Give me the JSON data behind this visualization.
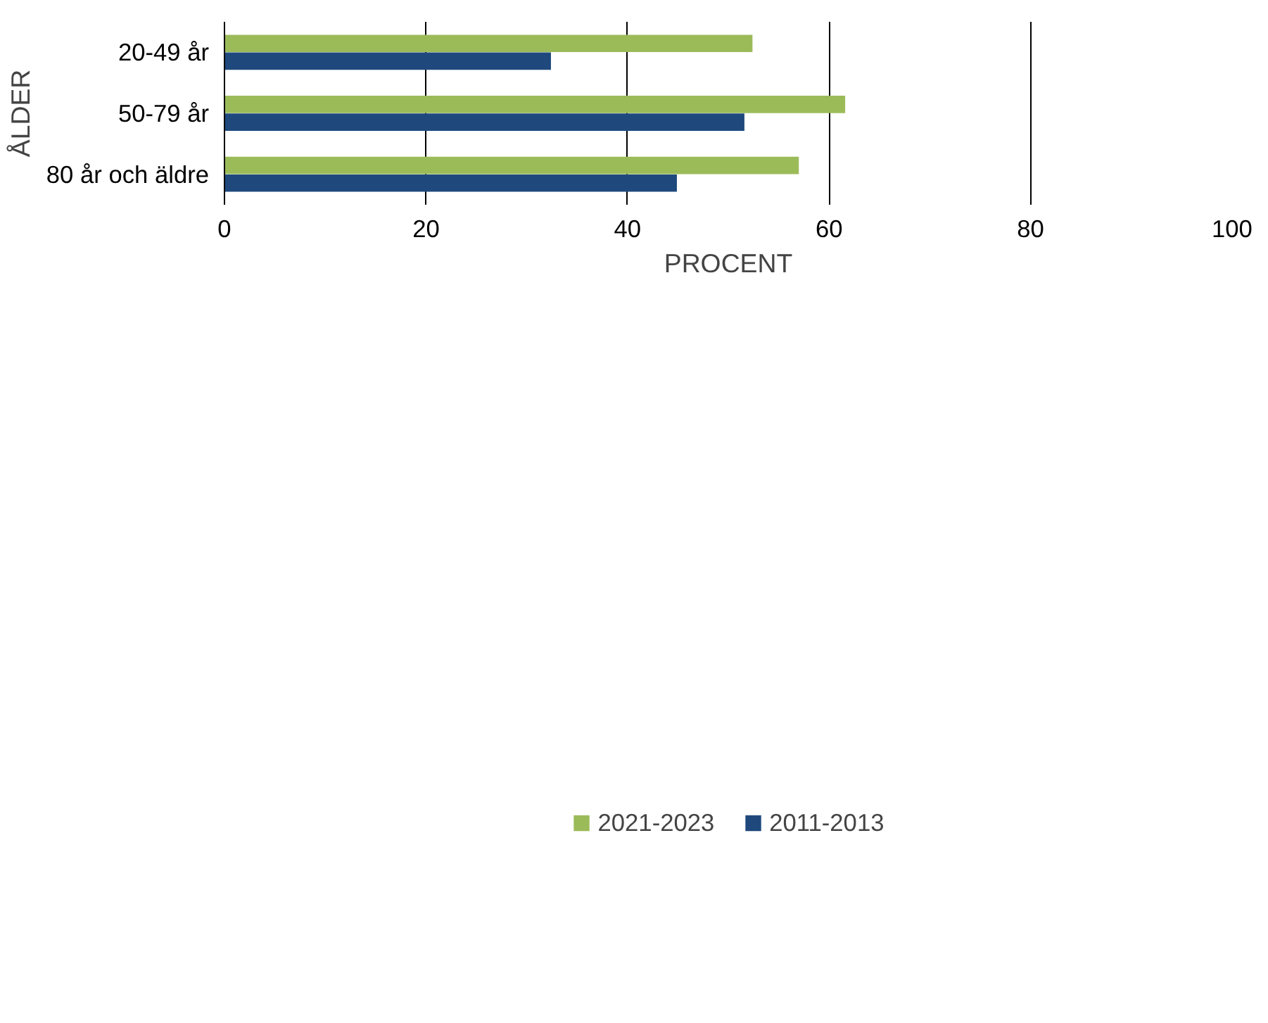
{
  "chart_data": {
    "type": "bar",
    "orientation": "horizontal",
    "xlabel": "PROCENT",
    "ylabel": "ÅLDER",
    "categories": [
      "20-49 år",
      "50-79 år",
      "80 år och äldre"
    ],
    "series": [
      {
        "name": "2021-2023",
        "color": "#9bbb59",
        "values": [
          52.4,
          61.6,
          57.0
        ]
      },
      {
        "name": "2011-2013",
        "color": "#1f497d",
        "values": [
          32.4,
          51.6,
          44.9
        ]
      }
    ],
    "xlim": [
      0,
      100
    ],
    "xticks": [
      0,
      20,
      40,
      60,
      80,
      100
    ],
    "grid": "x",
    "legend": "bottom"
  }
}
